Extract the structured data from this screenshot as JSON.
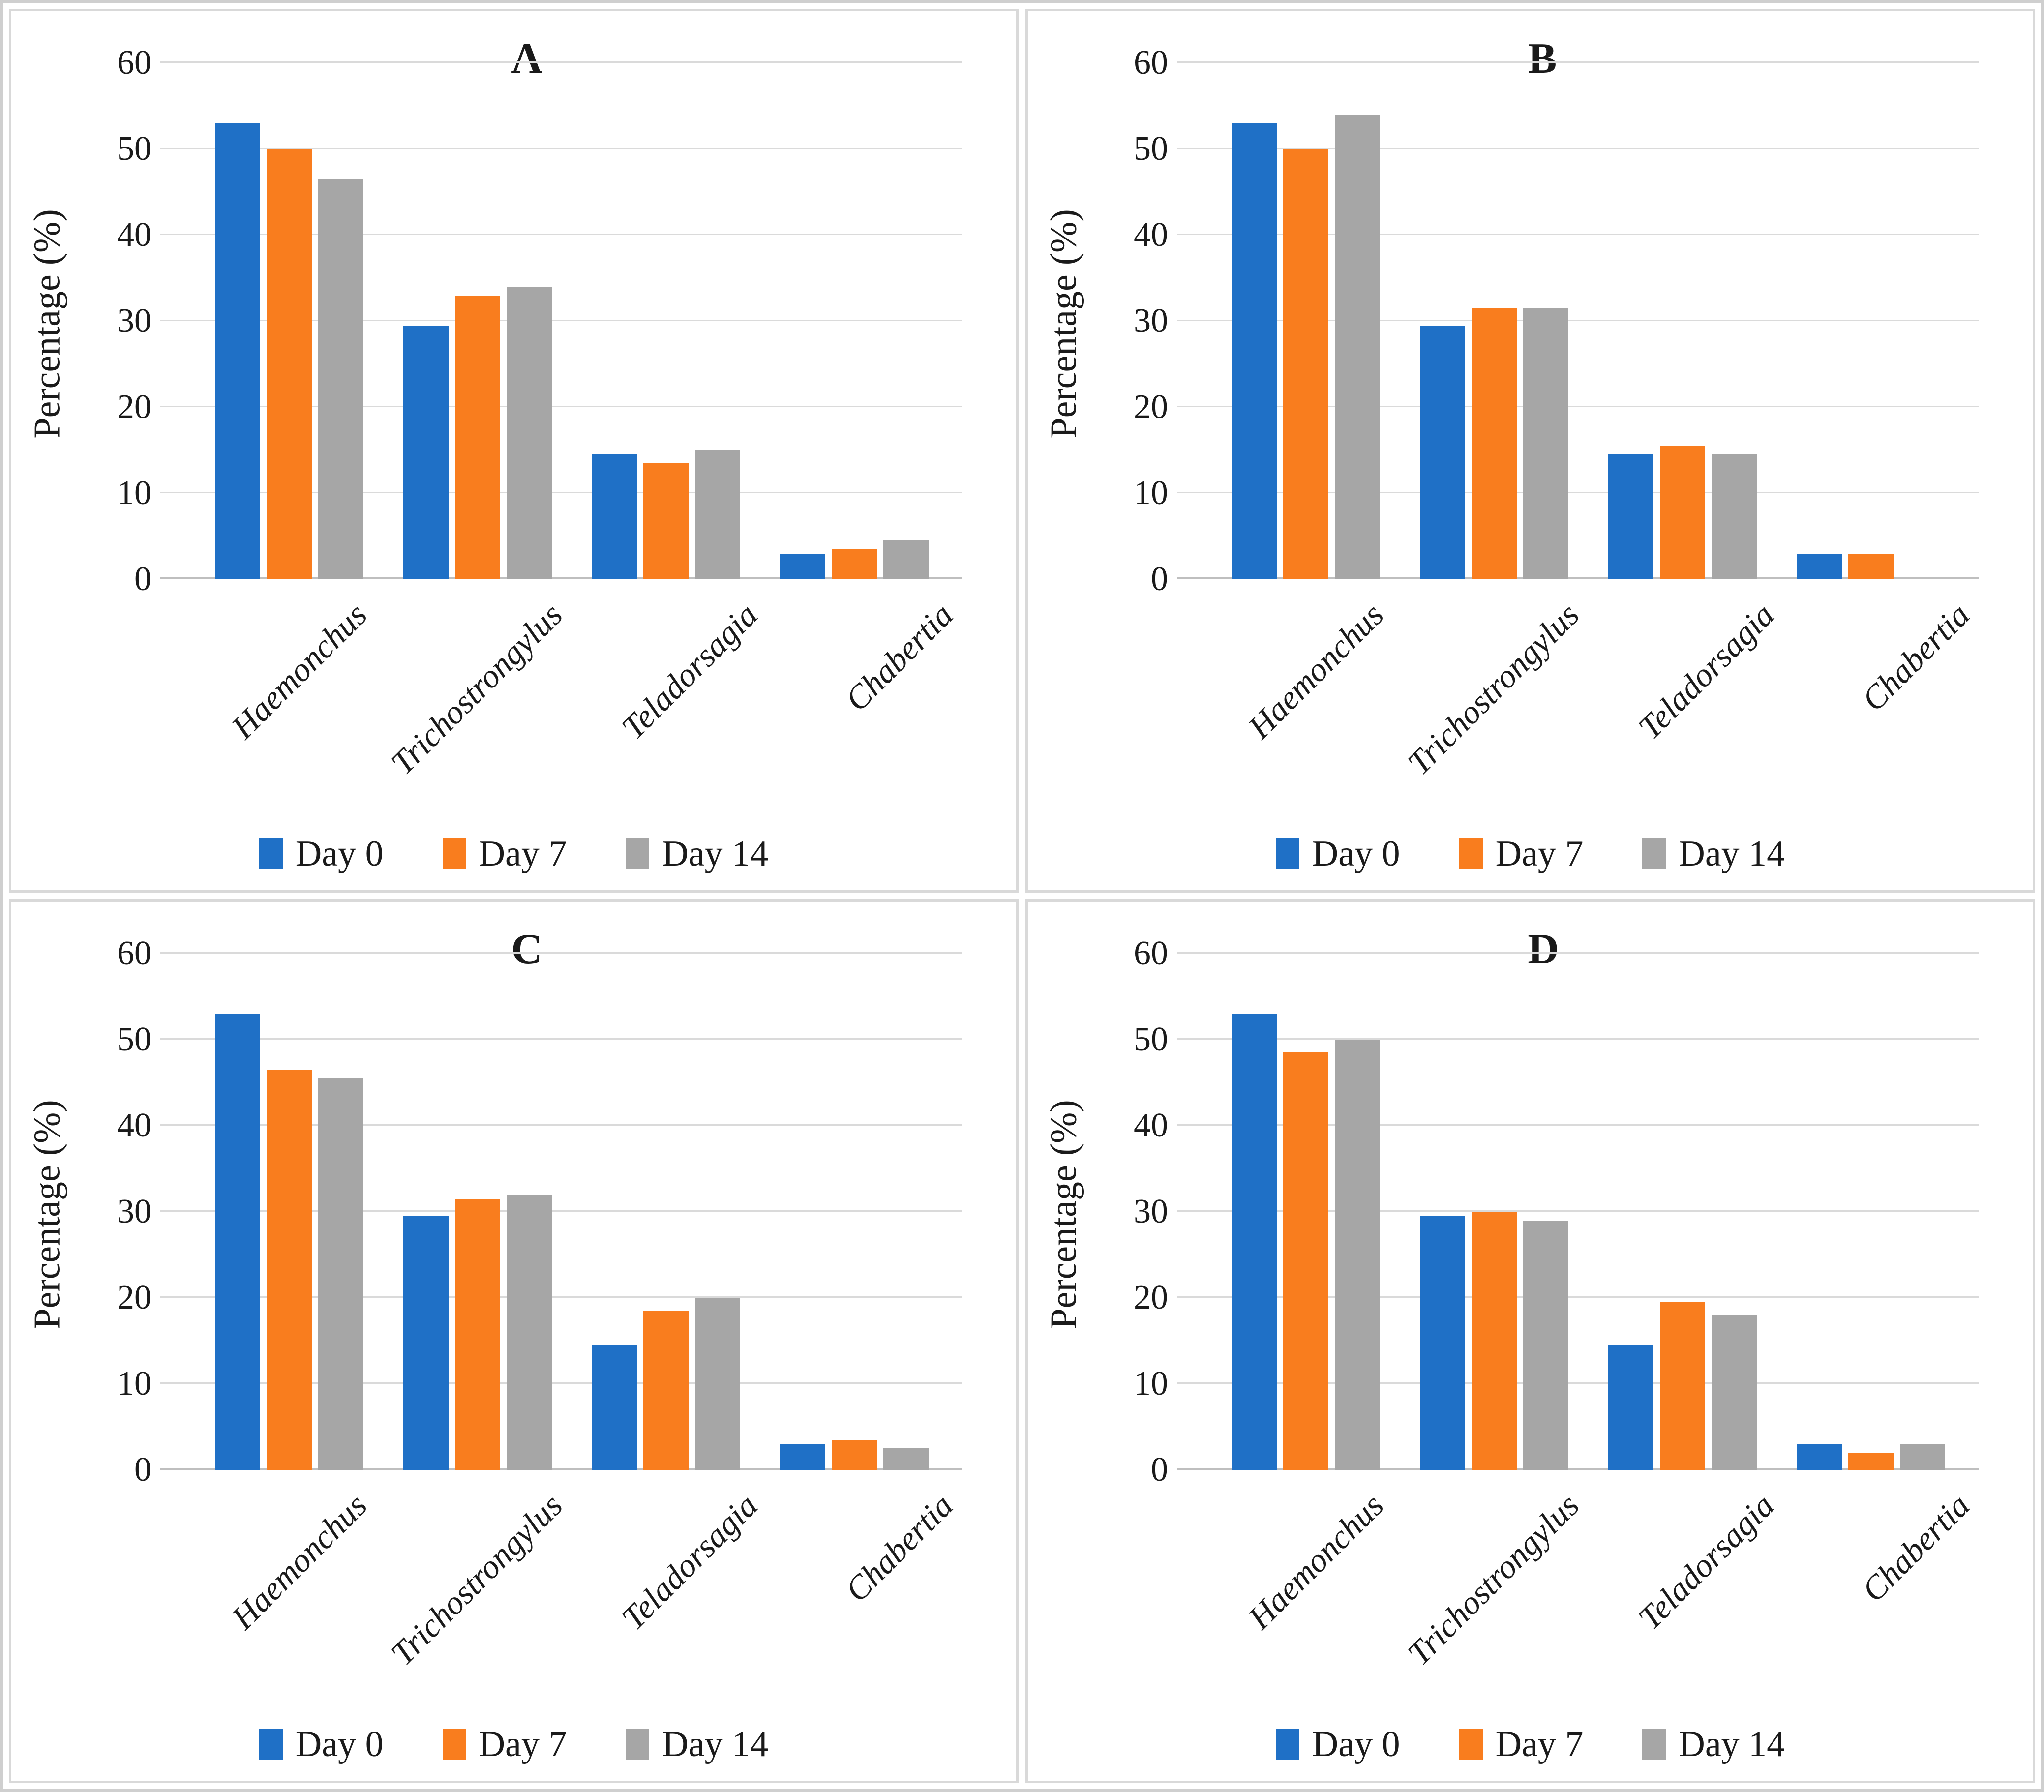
{
  "figure": {
    "panels": [
      "A",
      "B",
      "C",
      "D"
    ],
    "colors": {
      "day0": "#1f70c6",
      "day7": "#f97d1e",
      "day14": "#a6a6a6",
      "gridline": "#dadada",
      "axis_line": "#bfbfbf",
      "panel_border": "#d9d9d9",
      "text": "#1a1a1a"
    }
  },
  "chart_data": [
    {
      "id": "A",
      "type": "bar",
      "title": "A",
      "xlabel": "",
      "ylabel": "Percentage (%)",
      "ylim": [
        0,
        60
      ],
      "yticks": [
        0,
        10,
        20,
        30,
        40,
        50,
        60
      ],
      "grid": true,
      "legend_position": "bottom",
      "categories": [
        "Haemonchus",
        "Trichostrongylus",
        "Teladorsagia",
        "Chabertia"
      ],
      "series": [
        {
          "name": "Day 0",
          "color": "#1f70c6",
          "values": [
            53,
            29.5,
            14.5,
            3
          ]
        },
        {
          "name": "Day 7",
          "color": "#f97d1e",
          "values": [
            50,
            33,
            13.5,
            3.5
          ]
        },
        {
          "name": "Day 14",
          "color": "#a6a6a6",
          "values": [
            46.5,
            34,
            15,
            4.5
          ]
        }
      ]
    },
    {
      "id": "B",
      "type": "bar",
      "title": "B",
      "xlabel": "",
      "ylabel": "Percentage (%)",
      "ylim": [
        0,
        60
      ],
      "yticks": [
        0,
        10,
        20,
        30,
        40,
        50,
        60
      ],
      "grid": true,
      "legend_position": "bottom",
      "categories": [
        "Haemonchus",
        "Trichostrongylus",
        "Teladorsagia",
        "Chabertia"
      ],
      "series": [
        {
          "name": "Day 0",
          "color": "#1f70c6",
          "values": [
            53,
            29.5,
            14.5,
            3
          ]
        },
        {
          "name": "Day 7",
          "color": "#f97d1e",
          "values": [
            50,
            31.5,
            15.5,
            3
          ]
        },
        {
          "name": "Day 14",
          "color": "#a6a6a6",
          "values": [
            54,
            31.5,
            14.5,
            0
          ]
        }
      ]
    },
    {
      "id": "C",
      "type": "bar",
      "title": "C",
      "xlabel": "",
      "ylabel": "Percentage (%)",
      "ylim": [
        0,
        60
      ],
      "yticks": [
        0,
        10,
        20,
        30,
        40,
        50,
        60
      ],
      "grid": true,
      "legend_position": "bottom",
      "categories": [
        "Haemonchus",
        "Trichostrongylus",
        "Teladorsagia",
        "Chabertia"
      ],
      "series": [
        {
          "name": "Day 0",
          "color": "#1f70c6",
          "values": [
            53,
            29.5,
            14.5,
            3
          ]
        },
        {
          "name": "Day 7",
          "color": "#f97d1e",
          "values": [
            46.5,
            31.5,
            18.5,
            3.5
          ]
        },
        {
          "name": "Day 14",
          "color": "#a6a6a6",
          "values": [
            45.5,
            32,
            20,
            2.5
          ]
        }
      ]
    },
    {
      "id": "D",
      "type": "bar",
      "title": "D",
      "xlabel": "",
      "ylabel": "Percentage (%)",
      "ylim": [
        0,
        60
      ],
      "yticks": [
        0,
        10,
        20,
        30,
        40,
        50,
        60
      ],
      "grid": true,
      "legend_position": "bottom",
      "categories": [
        "Haemonchus",
        "Trichostrongylus",
        "Teladorsagia",
        "Chabertia"
      ],
      "series": [
        {
          "name": "Day 0",
          "color": "#1f70c6",
          "values": [
            53,
            29.5,
            14.5,
            3
          ]
        },
        {
          "name": "Day 7",
          "color": "#f97d1e",
          "values": [
            48.5,
            30,
            19.5,
            2
          ]
        },
        {
          "name": "Day 14",
          "color": "#a6a6a6",
          "values": [
            50,
            29,
            18,
            3
          ]
        }
      ]
    }
  ]
}
